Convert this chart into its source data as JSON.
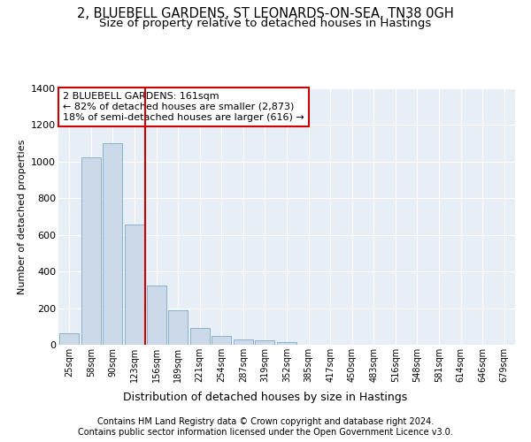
{
  "title1": "2, BLUEBELL GARDENS, ST LEONARDS-ON-SEA, TN38 0GH",
  "title2": "Size of property relative to detached houses in Hastings",
  "xlabel": "Distribution of detached houses by size in Hastings",
  "ylabel": "Number of detached properties",
  "bin_labels": [
    "25sqm",
    "58sqm",
    "90sqm",
    "123sqm",
    "156sqm",
    "189sqm",
    "221sqm",
    "254sqm",
    "287sqm",
    "319sqm",
    "352sqm",
    "385sqm",
    "417sqm",
    "450sqm",
    "483sqm",
    "516sqm",
    "548sqm",
    "581sqm",
    "614sqm",
    "646sqm",
    "679sqm"
  ],
  "bar_values": [
    65,
    1025,
    1100,
    655,
    325,
    190,
    90,
    50,
    30,
    25,
    15,
    0,
    0,
    0,
    0,
    0,
    0,
    0,
    0,
    0,
    0
  ],
  "bar_color": "#ccd9e8",
  "bar_edge_color": "#7aaac8",
  "red_line_color": "#cc0000",
  "red_line_bin": 4,
  "annotation_line1": "2 BLUEBELL GARDENS: 161sqm",
  "annotation_line2": "← 82% of detached houses are smaller (2,873)",
  "annotation_line3": "18% of semi-detached houses are larger (616) →",
  "annotation_box_color": "#ffffff",
  "annotation_box_edge": "#cc0000",
  "ylim": [
    0,
    1400
  ],
  "yticks": [
    0,
    200,
    400,
    600,
    800,
    1000,
    1200,
    1400
  ],
  "footnote1": "Contains HM Land Registry data © Crown copyright and database right 2024.",
  "footnote2": "Contains public sector information licensed under the Open Government Licence v3.0.",
  "bg_color": "#ffffff",
  "plot_bg_color": "#e8eef5",
  "grid_color": "#ffffff",
  "title1_fontsize": 10.5,
  "title2_fontsize": 9.5,
  "footnote_fontsize": 7
}
